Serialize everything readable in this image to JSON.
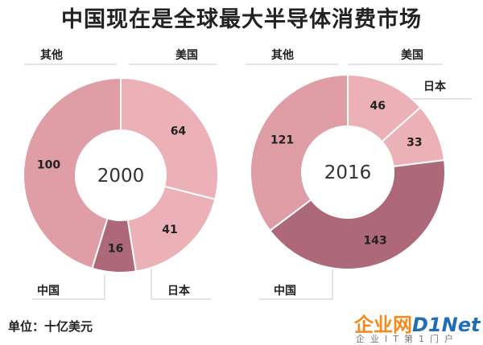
{
  "title": "中国现在是全球最大半导体消费市场",
  "unit_note": "单位：十亿美元",
  "watermark": {
    "brand_cn": "企业网",
    "brand_en": "D1Net",
    "sub": "企业IT第1门户"
  },
  "colors": {
    "light": "#ebb1b6",
    "mid": "#df9ea5",
    "dark": "#ad6879",
    "leader": "#c9c9c9",
    "text": "#222222"
  },
  "chart_data": [
    {
      "type": "pie",
      "center_label": "2000",
      "slices": [
        {
          "label": "美国",
          "value": 64
        },
        {
          "label": "日本",
          "value": 41
        },
        {
          "label": "中国",
          "value": 16
        },
        {
          "label": "其他",
          "value": 100
        }
      ]
    },
    {
      "type": "pie",
      "center_label": "2016",
      "slices": [
        {
          "label": "美国",
          "value": 46
        },
        {
          "label": "日本",
          "value": 33
        },
        {
          "label": "中国",
          "value": 143
        },
        {
          "label": "其他",
          "value": 121
        }
      ]
    }
  ]
}
